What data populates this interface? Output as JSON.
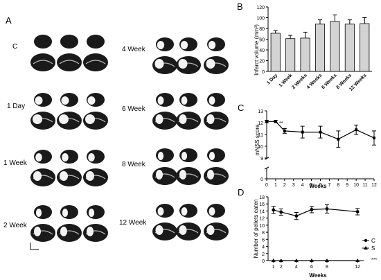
{
  "panels": {
    "a": "A",
    "b": "B",
    "c": "C",
    "d": "D"
  },
  "panel_a": {
    "groups_left": [
      "C",
      "1 Day",
      "1 Week",
      "2 Week"
    ],
    "groups_right": [
      "4 Week",
      "6 Week",
      "8 Week",
      "12 Week"
    ]
  },
  "colors": {
    "bar_fill": "#d3d3d3",
    "ink": "#000000",
    "section_fill": "#1a1a1a"
  },
  "chart_data": [
    {
      "id": "B",
      "type": "bar",
      "title": "",
      "ylabel": "Infarct volume (mm³)",
      "xlabel": "",
      "categories": [
        "1 Day",
        "1 Week",
        "2 Weeks",
        "4 Weeks",
        "6 Weeks",
        "8 Weeks",
        "12 Weeks"
      ],
      "values": [
        71,
        61,
        62,
        88,
        93,
        88,
        89
      ],
      "errors": [
        5,
        6,
        11,
        8,
        12,
        8,
        11
      ],
      "ylim": [
        0,
        120
      ],
      "yticks": [
        0,
        20,
        40,
        60,
        80,
        100,
        120
      ],
      "grid": false
    },
    {
      "id": "C",
      "type": "line",
      "title": "",
      "ylabel": "mNSS score",
      "xlabel": "Weeks",
      "x": [
        0,
        1,
        2,
        4,
        6,
        8,
        10,
        12
      ],
      "values": [
        12.1,
        12.1,
        11.3,
        11.2,
        11.2,
        10.6,
        11.4,
        10.7
      ],
      "errors": [
        0.1,
        0.1,
        0.2,
        0.5,
        0.5,
        0.7,
        0.4,
        0.6
      ],
      "ylim": [
        0,
        13
      ],
      "axis_break": true,
      "yticks": [
        9,
        10,
        11,
        12,
        13
      ],
      "xticks": [
        0,
        1,
        2,
        3,
        4,
        5,
        6,
        7,
        8,
        9,
        10,
        11,
        12
      ],
      "annotations": [
        "**"
      ],
      "grid": false
    },
    {
      "id": "D",
      "type": "line",
      "title": "",
      "ylabel": "Number of pellets eaten",
      "xlabel": "Weeks",
      "x": [
        1,
        2,
        4,
        6,
        8,
        12
      ],
      "series": [
        {
          "name": "C",
          "values": [
            14.3,
            13.7,
            12.6,
            14.4,
            14.6,
            13.8
          ],
          "errors": [
            1.0,
            0.9,
            1.0,
            0.9,
            1.2,
            0.9
          ],
          "marker": "circle"
        },
        {
          "name": "S",
          "values": [
            0,
            0,
            0,
            0,
            0,
            0
          ],
          "errors": [
            0,
            0,
            0,
            0,
            0,
            0
          ],
          "marker": "triangle"
        }
      ],
      "ylim": [
        0,
        18
      ],
      "yticks": [
        0,
        2,
        4,
        6,
        8,
        10,
        12,
        14,
        16,
        18
      ],
      "xticks": [
        1,
        2,
        4,
        6,
        8,
        12
      ],
      "legend": "right",
      "annotations": [
        "***"
      ],
      "grid": false
    }
  ]
}
